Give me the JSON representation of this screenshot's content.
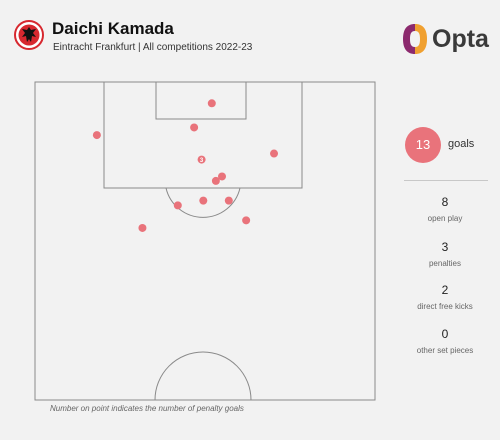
{
  "header": {
    "player_name": "Daichi Kamada",
    "subtitle": "Eintracht Frankfurt | All competitions 2022-23",
    "brand": "Opta"
  },
  "summary": {
    "total_value": "13",
    "total_label": "goals",
    "breakdown": [
      {
        "value": "8",
        "label": "open play"
      },
      {
        "value": "3",
        "label": "penalties"
      },
      {
        "value": "2",
        "label": "direct free kicks"
      },
      {
        "value": "0",
        "label": "other set pieces"
      }
    ]
  },
  "footnote": "Number on point indicates the number of penalty goals",
  "colors": {
    "goal_marker": "#e9737b",
    "pitch_lines": "#8a8a8a",
    "background": "#f2f2f2",
    "brand_orange": "#f0a030",
    "brand_purple": "#8c2a6e",
    "crest": "#d7282f"
  },
  "chart_data": {
    "type": "scatter",
    "description_units": "x = across pitch, 0 (left touchline) to 100 (right touchline); y = distance from goal line, 0 (goal line) to 100 (halfway line)",
    "xlim": [
      0,
      100
    ],
    "ylim": [
      0,
      100
    ],
    "points": [
      {
        "x": 52.0,
        "y": 6.7,
        "label": ""
      },
      {
        "x": 18.2,
        "y": 16.7,
        "label": ""
      },
      {
        "x": 46.8,
        "y": 14.3,
        "label": ""
      },
      {
        "x": 70.3,
        "y": 22.5,
        "label": ""
      },
      {
        "x": 49.0,
        "y": 24.4,
        "label": "3"
      },
      {
        "x": 55.0,
        "y": 29.7,
        "label": ""
      },
      {
        "x": 53.2,
        "y": 31.1,
        "label": ""
      },
      {
        "x": 42.0,
        "y": 38.8,
        "label": ""
      },
      {
        "x": 49.5,
        "y": 37.3,
        "label": ""
      },
      {
        "x": 57.0,
        "y": 37.3,
        "label": ""
      },
      {
        "x": 31.6,
        "y": 45.9,
        "label": ""
      },
      {
        "x": 62.1,
        "y": 43.5,
        "label": ""
      }
    ]
  }
}
